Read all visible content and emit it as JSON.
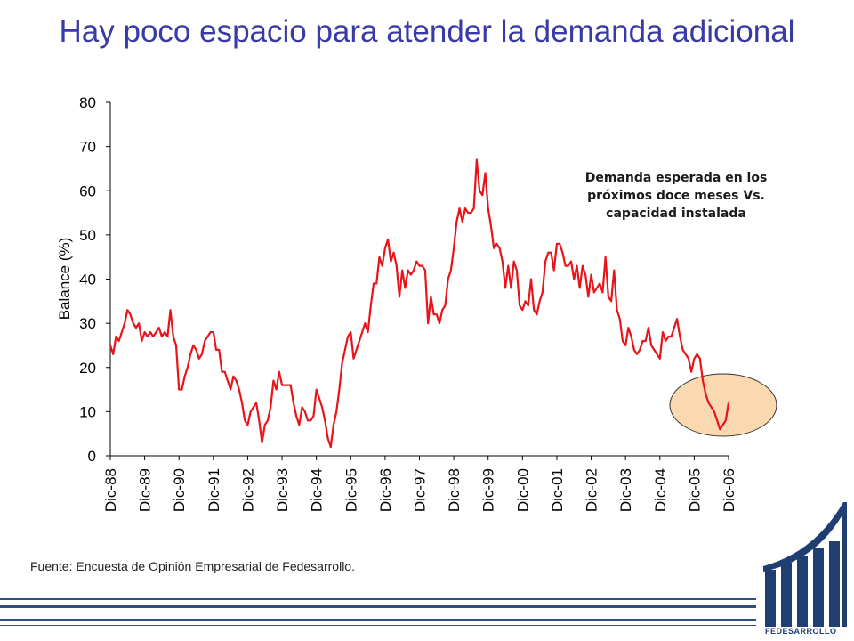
{
  "title": "Hay poco espacio para atender la demanda adicional",
  "annotation": "Demanda esperada en los próximos doce meses Vs. capacidad instalada",
  "source": "Fuente: Encuesta de Opinión Empresarial de Fedesarrollo.",
  "logo_text": "FEDESARROLLO",
  "colors": {
    "title": "#3a3aa6",
    "line": "#e8141a",
    "highlight_fill": "#fbd9b0",
    "brand": "#1f3f73"
  },
  "chart_data": {
    "type": "line",
    "title": "",
    "xlabel": "",
    "ylabel": "Balance (%)",
    "ylim": [
      0,
      80
    ],
    "yticks": [
      0,
      10,
      20,
      30,
      40,
      50,
      60,
      70,
      80
    ],
    "grid": false,
    "legend": "none",
    "xticks": [
      "Dic-88",
      "Dic-89",
      "Dic-90",
      "Dic-91",
      "Dic-92",
      "Dic-93",
      "Dic-94",
      "Dic-95",
      "Dic-96",
      "Dic-97",
      "Dic-98",
      "Dic-99",
      "Dic-00",
      "Dic-01",
      "Dic-02",
      "Dic-03",
      "Dic-04",
      "Dic-05",
      "Dic-06"
    ],
    "series": [
      {
        "values": [
          25,
          23,
          27,
          26,
          28,
          30,
          33,
          32,
          30,
          29,
          30,
          26,
          28,
          27,
          28,
          27,
          28,
          29,
          27,
          28,
          27,
          33,
          27,
          25,
          15,
          15,
          18,
          20,
          23,
          25,
          24,
          22,
          23,
          26,
          27,
          28,
          28,
          24,
          24,
          19,
          19,
          17,
          15,
          18,
          17,
          15,
          12,
          8,
          7,
          10,
          11,
          12,
          8,
          3,
          7,
          8,
          11,
          17,
          15,
          19,
          16,
          16,
          16,
          16,
          12,
          9,
          7,
          11,
          10,
          8,
          8,
          9,
          15,
          13,
          11,
          8,
          4,
          2,
          7,
          10,
          15,
          21,
          24,
          27,
          28,
          22,
          24,
          26,
          28,
          30,
          28,
          34,
          39,
          39,
          45,
          43,
          47,
          49,
          44,
          46,
          43,
          36,
          42,
          38,
          42,
          41,
          42,
          44,
          43,
          43,
          42,
          30,
          36,
          32,
          32,
          30,
          33,
          34,
          40,
          42,
          47,
          53,
          56,
          53,
          56,
          55,
          55,
          56,
          67,
          60,
          59,
          64,
          56,
          52,
          47,
          48,
          47,
          44,
          38,
          43,
          38,
          44,
          42,
          34,
          33,
          35,
          34,
          40,
          33,
          32,
          35,
          37,
          44,
          46,
          46,
          42,
          48,
          48,
          46,
          43,
          43,
          44,
          40,
          43,
          38,
          43,
          41,
          36,
          41,
          37,
          38,
          39,
          37,
          45,
          36,
          35,
          42,
          33,
          31,
          26,
          25,
          29,
          27,
          24,
          23,
          24,
          26,
          26,
          29,
          25,
          24,
          23,
          22,
          28,
          26,
          27,
          27,
          29,
          31,
          27,
          24,
          23,
          22,
          19,
          22,
          23,
          22,
          17,
          14,
          12,
          11,
          10,
          8,
          6,
          7,
          8,
          12
        ]
      }
    ]
  }
}
